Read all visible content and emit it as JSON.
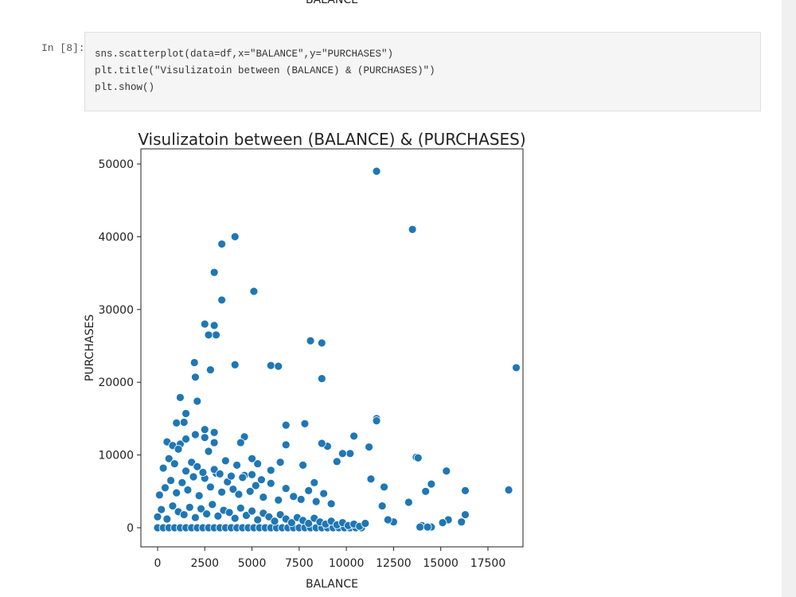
{
  "previous_output": {
    "x_label": "BALANCE"
  },
  "cell": {
    "prompt": "In [8]:",
    "code": [
      "sns.scatterplot(data=df,x=\"BALANCE\",y=\"PURCHASES\")",
      "plt.title(\"Visulizatoin between (BALANCE) & (PURCHASES)\")",
      "plt.show()"
    ]
  },
  "chart_data": {
    "type": "scatter",
    "title": "Visulizatoin between (BALANCE) & (PURCHASES)",
    "x_label": "BALANCE",
    "y_label": "PURCHASES",
    "color": "#1f77b4",
    "xlim": [
      -885,
      19356
    ],
    "ylim": [
      -2626,
      52079
    ],
    "xticks": [
      0,
      2500,
      5000,
      7500,
      10000,
      12500,
      15000,
      17500
    ],
    "yticks": [
      0,
      10000,
      20000,
      30000,
      40000,
      50000
    ],
    "grid": false,
    "x": [
      11600,
      13500,
      4100,
      3400,
      3000,
      3400,
      5100,
      2500,
      3000,
      3100,
      2700,
      8100,
      8700,
      19000,
      4100,
      1950,
      2000,
      2800,
      6000,
      6400,
      8700,
      2100,
      1200,
      1500,
      1400,
      1000,
      2500,
      6800,
      7800,
      11600,
      11600,
      13700,
      13800,
      15300,
      14500,
      14200,
      16300,
      18600,
      16300,
      16100,
      15400,
      15100,
      14500,
      14000,
      13900,
      14300,
      13300,
      12500,
      12200,
      11900,
      12000,
      11300,
      11200,
      10400,
      10200,
      9800,
      9500,
      9000,
      8700,
      8300,
      7700,
      6800,
      6500,
      5300,
      5000,
      4600,
      4400,
      3000,
      0,
      300,
      600,
      900,
      1200,
      1500,
      1800,
      2100,
      2400,
      2700,
      3000,
      3300,
      3600,
      3900,
      4200,
      4500,
      4800,
      5100,
      5400,
      5700,
      6000,
      6300,
      6600,
      6900,
      7200,
      7500,
      7800,
      8100,
      8400,
      8700,
      9000,
      9300,
      9600,
      9900,
      10200,
      10500,
      10800,
      0,
      200,
      500,
      800,
      1100,
      1400,
      1700,
      2000,
      2300,
      2600,
      2900,
      3200,
      3500,
      3800,
      4100,
      4400,
      4700,
      5000,
      5300,
      5600,
      5900,
      6200,
      6500,
      6800,
      7100,
      7400,
      7700,
      8000,
      8300,
      8600,
      8900,
      9200,
      9500,
      9800,
      10100,
      10400,
      10700,
      11000,
      100,
      400,
      700,
      1000,
      1300,
      1600,
      1900,
      2200,
      2500,
      2800,
      3100,
      3400,
      3700,
      4000,
      4300,
      4600,
      4900,
      5200,
      5600,
      6000,
      6400,
      6800,
      7200,
      7600,
      8000,
      8400,
      8800,
      9200,
      300,
      600,
      900,
      1200,
      1500,
      1800,
      2100,
      2400,
      2700,
      3000,
      3300,
      3600,
      3900,
      4200,
      4500,
      5000,
      5500,
      6000,
      500,
      800,
      1100,
      1500,
      2000,
      2500,
      3000
    ],
    "y": [
      49000,
      41000,
      40000,
      39000,
      35100,
      31300,
      32500,
      28000,
      27800,
      26500,
      26500,
      25700,
      25400,
      22000,
      22400,
      22700,
      20700,
      21700,
      22300,
      22200,
      20500,
      17400,
      17900,
      15700,
      14500,
      14400,
      13500,
      14100,
      14300,
      15000,
      14700,
      9700,
      9600,
      7800,
      6000,
      5000,
      5100,
      5200,
      1800,
      800,
      1100,
      700,
      100,
      300,
      100,
      100,
      3500,
      800,
      1100,
      3000,
      5600,
      6700,
      11100,
      12600,
      10200,
      10200,
      9100,
      11200,
      11600,
      6200,
      8600,
      11400,
      9000,
      8800,
      9500,
      12500,
      11700,
      11700,
      0,
      0,
      0,
      0,
      0,
      0,
      0,
      0,
      0,
      0,
      0,
      0,
      0,
      0,
      0,
      0,
      0,
      0,
      0,
      0,
      0,
      0,
      0,
      0,
      0,
      0,
      0,
      0,
      0,
      0,
      0,
      0,
      0,
      0,
      0,
      0,
      0,
      1500,
      2500,
      1200,
      3000,
      2200,
      1800,
      2800,
      1400,
      2600,
      1900,
      3200,
      1600,
      2400,
      2100,
      1300,
      2700,
      1700,
      2300,
      1100,
      2000,
      1500,
      900,
      1800,
      1200,
      700,
      1400,
      1000,
      600,
      1300,
      800,
      500,
      900,
      400,
      700,
      300,
      500,
      200,
      600,
      4500,
      5500,
      6500,
      4800,
      6200,
      5200,
      7000,
      4400,
      6800,
      5600,
      7500,
      4900,
      6300,
      5300,
      4600,
      7200,
      5000,
      5800,
      4200,
      6100,
      3800,
      5400,
      4300,
      3900,
      5100,
      3600,
      4700,
      3300,
      8200,
      9500,
      8800,
      11500,
      7800,
      9000,
      8400,
      7600,
      10500,
      8000,
      7400,
      9200,
      7100,
      8600,
      6900,
      7300,
      6600,
      7900,
      11800,
      11300,
      10800,
      12200,
      12800,
      12400,
      13100
    ]
  }
}
